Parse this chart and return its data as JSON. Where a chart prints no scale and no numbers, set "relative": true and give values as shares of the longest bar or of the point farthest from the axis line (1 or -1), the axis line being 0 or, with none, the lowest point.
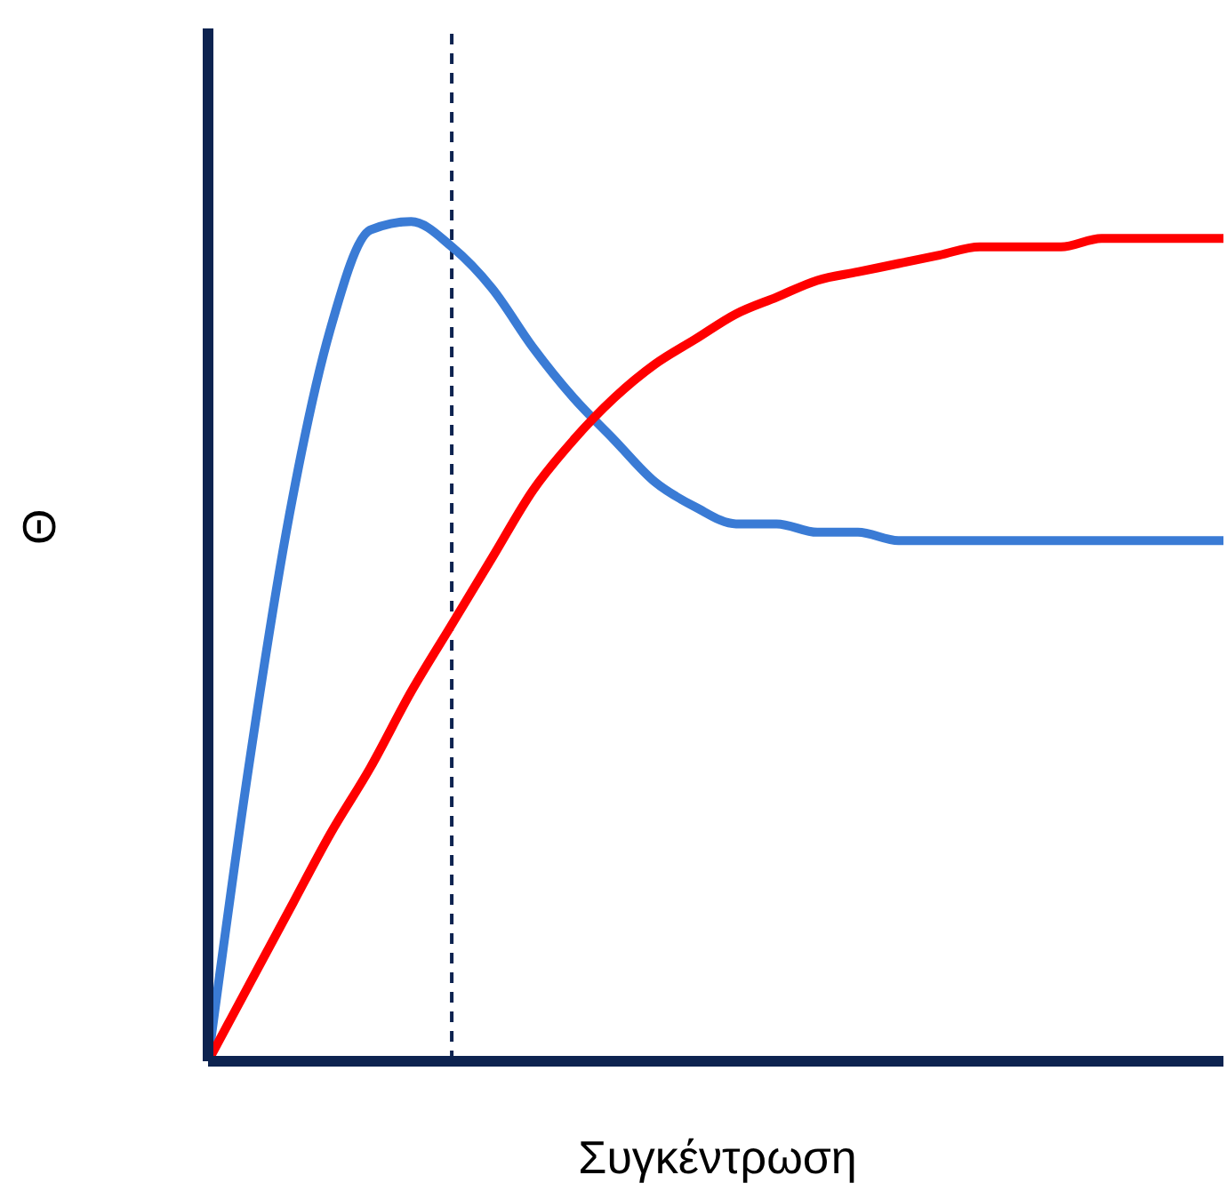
{
  "chart_data": {
    "type": "line",
    "xlabel": "Συγκέντρωση",
    "ylabel": "Θ",
    "relative": true,
    "tick_labels": false,
    "grid": false,
    "legend": false,
    "marker": "none",
    "line_style": "solid",
    "categories": [
      null,
      null,
      null,
      null,
      null,
      null,
      null,
      null,
      null,
      null,
      null,
      null,
      null,
      null,
      null,
      null,
      null,
      null,
      null,
      null,
      null,
      null,
      null,
      null,
      null,
      null
    ],
    "series": [
      {
        "color": "#3a7bd5",
        "values": [
          0,
          0.35,
          0.65,
          0.87,
          0.99,
          1,
          0.97,
          0.92,
          0.85,
          0.79,
          0.74,
          0.69,
          0.66,
          0.64,
          0.64,
          0.63,
          0.63,
          0.62,
          0.62,
          0.62,
          0.62,
          0.62,
          0.62,
          0.62,
          0.62,
          0.62
        ]
      },
      {
        "color": "#ff0000",
        "values": [
          0,
          0.09,
          0.18,
          0.27,
          0.35,
          0.44,
          0.52,
          0.6,
          0.68,
          0.74,
          0.79,
          0.83,
          0.86,
          0.89,
          0.91,
          0.93,
          0.94,
          0.95,
          0.96,
          0.97,
          0.97,
          0.97,
          0.98,
          0.98,
          0.98,
          0.98
        ]
      }
    ]
  }
}
